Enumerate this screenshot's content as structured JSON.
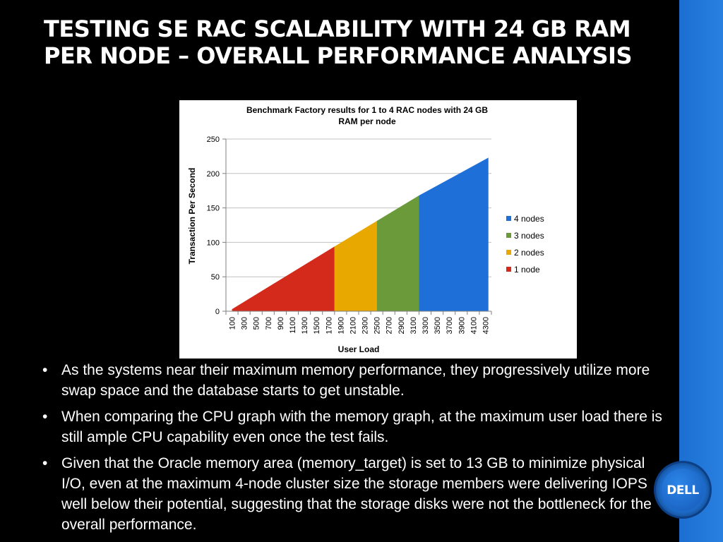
{
  "slide": {
    "title": "TESTING SE RAC SCALABILITY WITH 24 GB RAM PER NODE – OVERALL PERFORMANCE ANALYSIS",
    "bullets": [
      "As the systems near their maximum memory performance, they progressively utilize more swap space and the database starts to get unstable.",
      "When comparing the CPU graph with the memory graph, at the maximum user load there is still ample CPU capability even once the test fails.",
      "Given that the Oracle memory area (memory_target) is set to 13 GB to minimize physical I/O, even at the maximum 4-node cluster size the storage members were delivering IOPS well below their potential, suggesting that the storage disks were not the bottleneck for the overall performance."
    ],
    "logo": "dell-logo",
    "colors": {
      "background": "#000000",
      "right_band": "#1f73d6"
    }
  },
  "chart_data": {
    "type": "area",
    "title": "Benchmark Factory results for 1 to 4 RAC nodes with 24 GB RAM per node",
    "title_lines": [
      "Benchmark Factory results for 1 to 4 RAC nodes with 24 GB",
      "RAM per node"
    ],
    "xlabel": "User Load",
    "ylabel": "Transaction Per Second",
    "x": [
      100,
      300,
      500,
      700,
      900,
      1100,
      1300,
      1500,
      1700,
      1900,
      2100,
      2300,
      2500,
      2700,
      2900,
      3100,
      3300,
      3500,
      3700,
      3900,
      4100,
      4300
    ],
    "y_ticks": [
      0,
      50,
      100,
      150,
      200,
      250
    ],
    "ylim": [
      0,
      250
    ],
    "grid": true,
    "legend_position": "right",
    "series": [
      {
        "name": "1 node",
        "color": "#d42a1c",
        "x": [
          100,
          1800
        ],
        "y": [
          3,
          94
        ]
      },
      {
        "name": "2 nodes",
        "color": "#e8a800",
        "x": [
          1800,
          2500
        ],
        "y": [
          94,
          131
        ]
      },
      {
        "name": "3 nodes",
        "color": "#6b9a3a",
        "x": [
          2500,
          3200
        ],
        "y": [
          131,
          168
        ]
      },
      {
        "name": "4 nodes",
        "color": "#1f6fd8",
        "x": [
          3200,
          4350
        ],
        "y": [
          168,
          223
        ]
      }
    ],
    "legend_order": [
      "4 nodes",
      "3 nodes",
      "2 nodes",
      "1 node"
    ]
  }
}
